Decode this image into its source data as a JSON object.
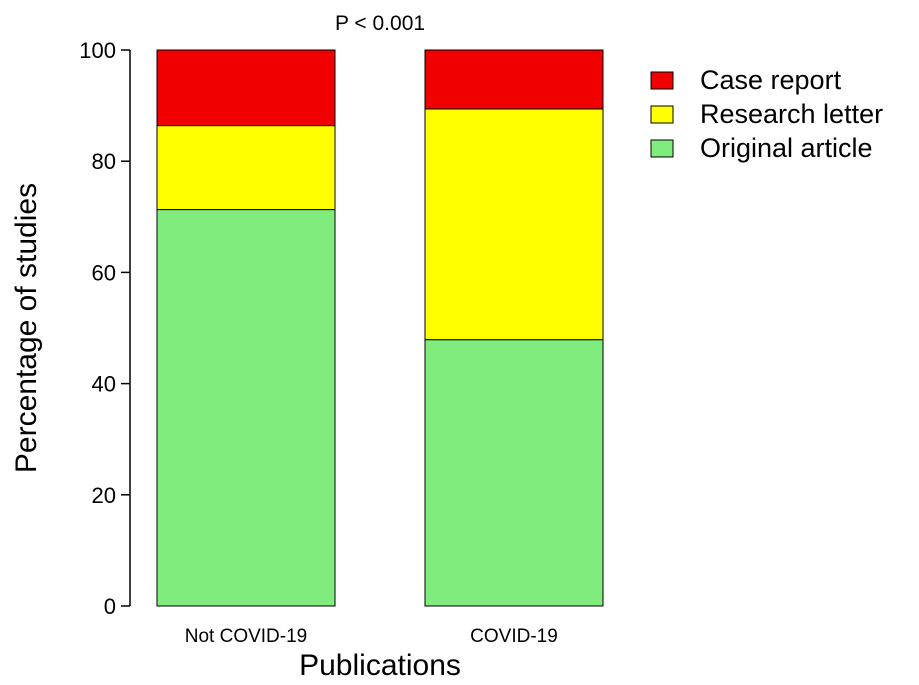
{
  "chart_data": {
    "type": "bar",
    "stacked": true,
    "categories": [
      "Not COVID-19",
      "COVID-19"
    ],
    "series": [
      {
        "name": "Original article",
        "values": [
          71.3,
          47.9
        ],
        "color": "#80ec7e"
      },
      {
        "name": "Research letter",
        "values": [
          15.1,
          41.5
        ],
        "color": "#ffff00"
      },
      {
        "name": "Case report",
        "values": [
          13.6,
          10.6
        ],
        "color": "#f10000"
      }
    ],
    "legend_order": [
      "Case report",
      "Research letter",
      "Original article"
    ],
    "title": "",
    "annotation": "P < 0.001",
    "xlabel": "Publications",
    "ylabel": "Percentage of studies",
    "ylim": [
      0,
      100
    ],
    "yticks": [
      0,
      20,
      40,
      60,
      80,
      100
    ],
    "grid": false,
    "legend_position": "top-right"
  }
}
